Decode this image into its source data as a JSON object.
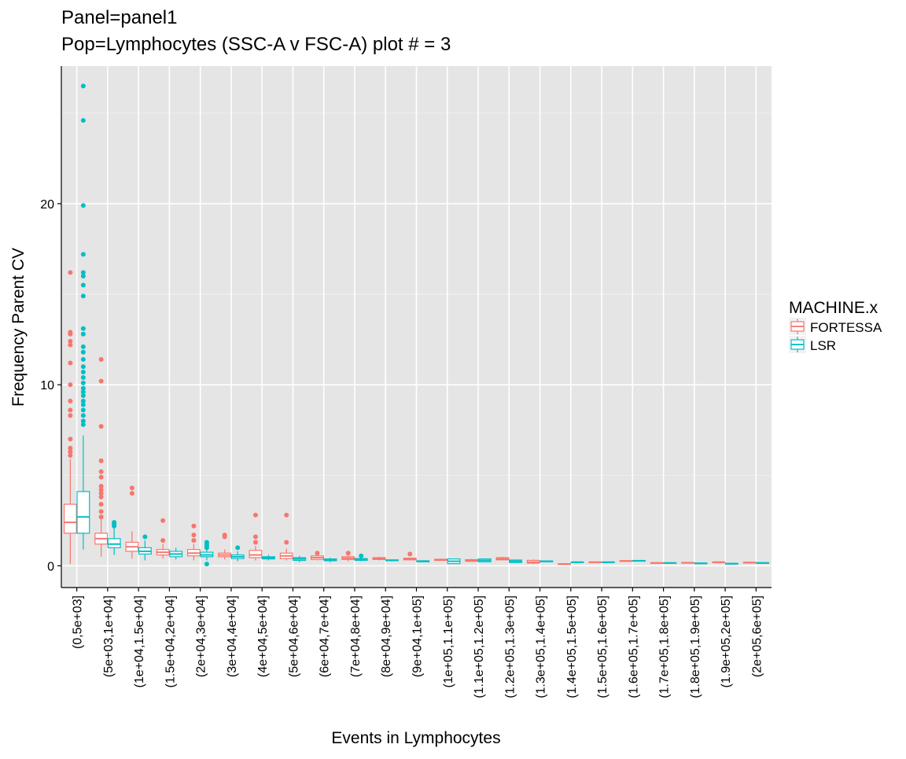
{
  "chart_data": {
    "type": "boxplot",
    "title": "Panel=panel1",
    "subtitle": "Pop=Lymphocytes (SSC-A v FSC-A) plot # = 3",
    "xlabel": "Events in Lymphocytes",
    "ylabel": "Frequency Parent CV",
    "ylim": [
      -1.2,
      27.6
    ],
    "yticks": [
      0,
      10,
      20
    ],
    "grid": true,
    "legend": {
      "title": "MACHINE.x",
      "placement": "right",
      "entries": [
        {
          "name": "FORTESSA",
          "color": "#F8766D"
        },
        {
          "name": "LSR",
          "color": "#00BFC4"
        }
      ]
    },
    "categories": [
      "(0,5e+03]",
      "(5e+03,1e+04]",
      "(1e+04,1.5e+04]",
      "(1.5e+04,2e+04]",
      "(2e+04,3e+04]",
      "(3e+04,4e+04]",
      "(4e+04,5e+04]",
      "(5e+04,6e+04]",
      "(6e+04,7e+04]",
      "(7e+04,8e+04]",
      "(8e+04,9e+04]",
      "(9e+04,1e+05]",
      "(1e+05,1.1e+05]",
      "(1.1e+05,1.2e+05]",
      "(1.2e+05,1.3e+05]",
      "(1.3e+05,1.4e+05]",
      "(1.4e+05,1.5e+05]",
      "(1.5e+05,1.6e+05]",
      "(1.6e+05,1.7e+05]",
      "(1.7e+05,1.8e+05]",
      "(1.8e+05,1.9e+05]",
      "(1.9e+05,2e+05]",
      "(2e+05,6e+05]"
    ],
    "series": [
      {
        "name": "FORTESSA",
        "color": "#F8766D",
        "boxes": [
          {
            "category": 0,
            "whisker_low": 0.1,
            "q1": 1.8,
            "median": 2.4,
            "q3": 3.4,
            "whisker_high": 5.9,
            "outliers": [
              6.1,
              6.3,
              6.5,
              7.0,
              8.3,
              8.6,
              9.1,
              10.0,
              11.2,
              12.2,
              12.4,
              12.8,
              12.9,
              16.2
            ]
          },
          {
            "category": 1,
            "whisker_low": 0.5,
            "q1": 1.2,
            "median": 1.5,
            "q3": 1.8,
            "whisker_high": 2.6,
            "outliers": [
              2.7,
              3.0,
              3.4,
              3.8,
              4.0,
              4.2,
              4.4,
              4.9,
              5.2,
              5.8,
              7.7,
              10.2,
              11.4
            ]
          },
          {
            "category": 2,
            "whisker_low": 0.4,
            "q1": 0.8,
            "median": 1.05,
            "q3": 1.3,
            "whisker_high": 1.9,
            "outliers": [
              4.0,
              4.3
            ]
          },
          {
            "category": 3,
            "whisker_low": 0.4,
            "q1": 0.6,
            "median": 0.75,
            "q3": 0.9,
            "whisker_high": 1.2,
            "outliers": [
              1.4,
              2.5
            ]
          },
          {
            "category": 4,
            "whisker_low": 0.3,
            "q1": 0.55,
            "median": 0.7,
            "q3": 0.9,
            "whisker_high": 1.2,
            "outliers": [
              1.4,
              1.7,
              2.2
            ]
          },
          {
            "category": 5,
            "whisker_low": 0.35,
            "q1": 0.5,
            "median": 0.6,
            "q3": 0.7,
            "whisker_high": 0.9,
            "outliers": [
              1.6,
              1.7
            ]
          },
          {
            "category": 6,
            "whisker_low": 0.3,
            "q1": 0.45,
            "median": 0.6,
            "q3": 0.85,
            "whisker_high": 1.1,
            "outliers": [
              1.3,
              1.6,
              2.8
            ]
          },
          {
            "category": 7,
            "whisker_low": 0.3,
            "q1": 0.4,
            "median": 0.55,
            "q3": 0.7,
            "whisker_high": 0.95,
            "outliers": [
              1.3,
              2.8
            ]
          },
          {
            "category": 8,
            "whisker_low": 0.3,
            "q1": 0.35,
            "median": 0.45,
            "q3": 0.55,
            "whisker_high": 0.65,
            "outliers": [
              0.7
            ]
          },
          {
            "category": 9,
            "whisker_low": 0.25,
            "q1": 0.35,
            "median": 0.42,
            "q3": 0.5,
            "whisker_high": 0.6,
            "outliers": [
              0.7
            ]
          },
          {
            "category": 10,
            "whisker_low": 0.3,
            "q1": 0.35,
            "median": 0.4,
            "q3": 0.45,
            "whisker_high": 0.5,
            "outliers": []
          },
          {
            "category": 11,
            "whisker_low": 0.3,
            "q1": 0.33,
            "median": 0.38,
            "q3": 0.42,
            "whisker_high": 0.45,
            "outliers": [
              0.65
            ]
          },
          {
            "category": 12,
            "whisker_low": 0.28,
            "q1": 0.3,
            "median": 0.33,
            "q3": 0.36,
            "whisker_high": 0.4,
            "outliers": []
          },
          {
            "category": 13,
            "whisker_low": 0.22,
            "q1": 0.25,
            "median": 0.3,
            "q3": 0.34,
            "whisker_high": 0.38,
            "outliers": []
          },
          {
            "category": 14,
            "whisker_low": 0.3,
            "q1": 0.33,
            "median": 0.38,
            "q3": 0.45,
            "whisker_high": 0.5,
            "outliers": []
          },
          {
            "category": 15,
            "whisker_low": 0.1,
            "q1": 0.15,
            "median": 0.2,
            "q3": 0.3,
            "whisker_high": 0.35,
            "outliers": []
          },
          {
            "category": 16,
            "whisker_low": 0.08,
            "q1": 0.09,
            "median": 0.1,
            "q3": 0.11,
            "whisker_high": 0.12,
            "outliers": []
          },
          {
            "category": 17,
            "whisker_low": 0.17,
            "q1": 0.18,
            "median": 0.2,
            "q3": 0.21,
            "whisker_high": 0.22,
            "outliers": []
          },
          {
            "category": 18,
            "whisker_low": 0.25,
            "q1": 0.26,
            "median": 0.27,
            "q3": 0.28,
            "whisker_high": 0.3,
            "outliers": []
          },
          {
            "category": 19,
            "whisker_low": 0.14,
            "q1": 0.15,
            "median": 0.16,
            "q3": 0.17,
            "whisker_high": 0.18,
            "outliers": []
          },
          {
            "category": 20,
            "whisker_low": 0.15,
            "q1": 0.16,
            "median": 0.17,
            "q3": 0.18,
            "whisker_high": 0.19,
            "outliers": []
          },
          {
            "category": 21,
            "whisker_low": 0.18,
            "q1": 0.19,
            "median": 0.2,
            "q3": 0.21,
            "whisker_high": 0.22,
            "outliers": []
          },
          {
            "category": 22,
            "whisker_low": 0.16,
            "q1": 0.17,
            "median": 0.18,
            "q3": 0.19,
            "whisker_high": 0.2,
            "outliers": []
          }
        ]
      },
      {
        "name": "LSR",
        "color": "#00BFC4",
        "boxes": [
          {
            "category": 0,
            "whisker_low": 0.9,
            "q1": 1.8,
            "median": 2.7,
            "q3": 4.1,
            "whisker_high": 7.2,
            "outliers": [
              7.8,
              8.0,
              8.3,
              8.6,
              8.9,
              9.1,
              9.4,
              9.6,
              9.8,
              10.1,
              10.4,
              10.7,
              11.0,
              11.4,
              11.8,
              12.1,
              12.8,
              13.1,
              14.9,
              15.5,
              16.0,
              16.2,
              17.2,
              19.9,
              24.6,
              26.5
            ]
          },
          {
            "category": 1,
            "whisker_low": 0.6,
            "q1": 1.0,
            "median": 1.2,
            "q3": 1.5,
            "whisker_high": 2.1,
            "outliers": [
              2.2,
              2.3,
              2.4
            ]
          },
          {
            "category": 2,
            "whisker_low": 0.3,
            "q1": 0.65,
            "median": 0.8,
            "q3": 1.0,
            "whisker_high": 1.4,
            "outliers": [
              1.6
            ]
          },
          {
            "category": 3,
            "whisker_low": 0.35,
            "q1": 0.5,
            "median": 0.65,
            "q3": 0.8,
            "whisker_high": 1.0,
            "outliers": []
          },
          {
            "category": 4,
            "whisker_low": 0.3,
            "q1": 0.5,
            "median": 0.6,
            "q3": 0.75,
            "whisker_high": 0.95,
            "outliers": [
              0.1,
              1.0,
              1.1,
              1.2,
              1.3
            ]
          },
          {
            "category": 5,
            "whisker_low": 0.25,
            "q1": 0.4,
            "median": 0.5,
            "q3": 0.6,
            "whisker_high": 0.8,
            "outliers": [
              1.0
            ]
          },
          {
            "category": 6,
            "whisker_low": 0.3,
            "q1": 0.38,
            "median": 0.45,
            "q3": 0.5,
            "whisker_high": 0.6,
            "outliers": []
          },
          {
            "category": 7,
            "whisker_low": 0.2,
            "q1": 0.3,
            "median": 0.38,
            "q3": 0.45,
            "whisker_high": 0.55,
            "outliers": []
          },
          {
            "category": 8,
            "whisker_low": 0.2,
            "q1": 0.28,
            "median": 0.32,
            "q3": 0.38,
            "whisker_high": 0.45,
            "outliers": []
          },
          {
            "category": 9,
            "whisker_low": 0.25,
            "q1": 0.3,
            "median": 0.35,
            "q3": 0.4,
            "whisker_high": 0.45,
            "outliers": [
              0.55
            ]
          },
          {
            "category": 10,
            "whisker_low": 0.25,
            "q1": 0.28,
            "median": 0.3,
            "q3": 0.33,
            "whisker_high": 0.35,
            "outliers": []
          },
          {
            "category": 11,
            "whisker_low": 0.2,
            "q1": 0.22,
            "median": 0.25,
            "q3": 0.28,
            "whisker_high": 0.3,
            "outliers": []
          },
          {
            "category": 12,
            "whisker_low": 0.1,
            "q1": 0.12,
            "median": 0.25,
            "q3": 0.38,
            "whisker_high": 0.4,
            "outliers": []
          },
          {
            "category": 13,
            "whisker_low": 0.2,
            "q1": 0.22,
            "median": 0.3,
            "q3": 0.38,
            "whisker_high": 0.4,
            "outliers": []
          },
          {
            "category": 14,
            "whisker_low": 0.15,
            "q1": 0.18,
            "median": 0.25,
            "q3": 0.32,
            "whisker_high": 0.35,
            "outliers": []
          },
          {
            "category": 15,
            "whisker_low": 0.2,
            "q1": 0.22,
            "median": 0.25,
            "q3": 0.27,
            "whisker_high": 0.3,
            "outliers": []
          },
          {
            "category": 16,
            "whisker_low": 0.17,
            "q1": 0.18,
            "median": 0.2,
            "q3": 0.21,
            "whisker_high": 0.22,
            "outliers": []
          },
          {
            "category": 17,
            "whisker_low": 0.18,
            "q1": 0.19,
            "median": 0.2,
            "q3": 0.21,
            "whisker_high": 0.22,
            "outliers": []
          },
          {
            "category": 18,
            "whisker_low": 0.26,
            "q1": 0.27,
            "median": 0.28,
            "q3": 0.29,
            "whisker_high": 0.3,
            "outliers": []
          },
          {
            "category": 19,
            "whisker_low": 0.14,
            "q1": 0.15,
            "median": 0.16,
            "q3": 0.17,
            "whisker_high": 0.18,
            "outliers": []
          },
          {
            "category": 20,
            "whisker_low": 0.12,
            "q1": 0.13,
            "median": 0.14,
            "q3": 0.15,
            "whisker_high": 0.16,
            "outliers": []
          },
          {
            "category": 21,
            "whisker_low": 0.1,
            "q1": 0.11,
            "median": 0.12,
            "q3": 0.13,
            "whisker_high": 0.14,
            "outliers": []
          },
          {
            "category": 22,
            "whisker_low": 0.14,
            "q1": 0.15,
            "median": 0.16,
            "q3": 0.17,
            "whisker_high": 0.18,
            "outliers": []
          }
        ]
      }
    ]
  }
}
